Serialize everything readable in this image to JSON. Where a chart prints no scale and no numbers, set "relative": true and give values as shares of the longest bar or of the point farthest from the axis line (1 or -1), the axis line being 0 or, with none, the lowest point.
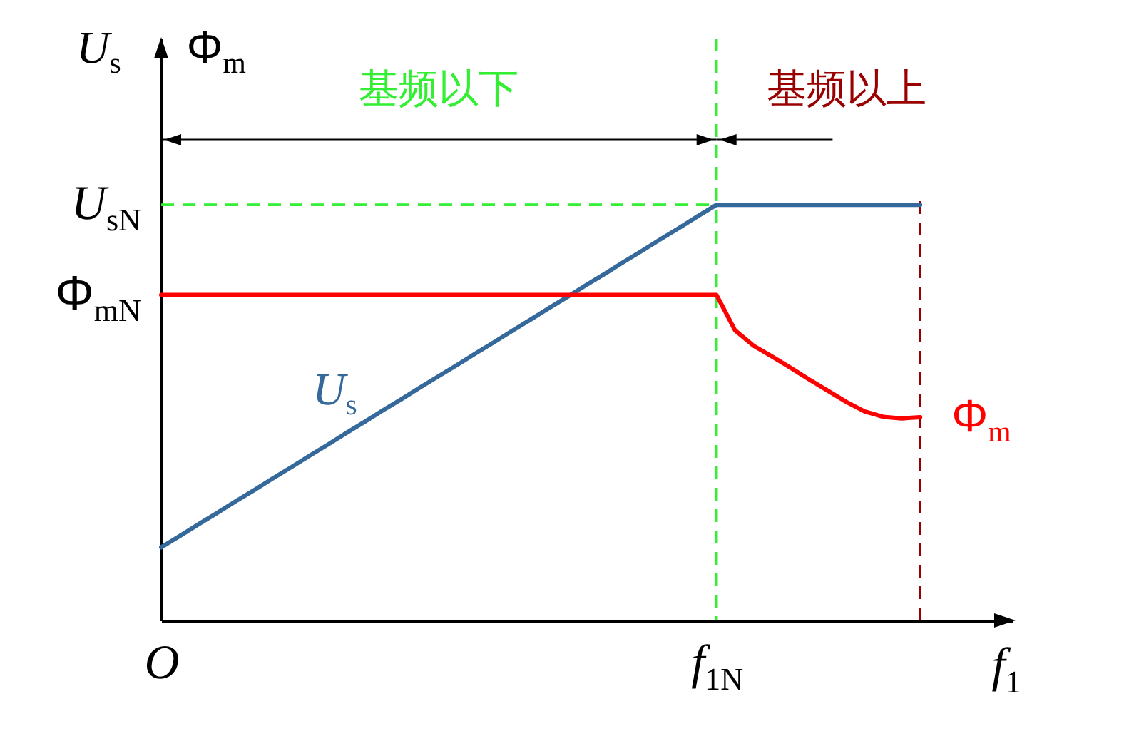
{
  "chart_data": {
    "type": "line",
    "relative": true,
    "ylabel": "U$_{s}$ Φ$_{m}$",
    "xlabel": "f$_{1}$",
    "categories": [
      "O",
      null,
      null,
      null,
      null,
      null,
      null,
      null,
      null,
      null,
      null,
      null,
      null,
      null,
      null,
      null,
      null,
      null,
      null,
      null,
      null,
      null,
      null,
      null,
      null,
      null,
      null,
      null,
      null,
      null,
      "f$_{1N}$",
      null,
      null,
      null,
      null,
      null,
      null,
      null,
      null,
      null,
      null,
      null
    ],
    "series": [
      {
        "name": "U$_{s}$",
        "color": "#36699b",
        "values": [
          0.176,
          0.203,
          0.231,
          0.258,
          0.286,
          0.313,
          0.341,
          0.368,
          0.396,
          0.423,
          0.451,
          0.478,
          0.506,
          0.533,
          0.561,
          0.588,
          0.615,
          0.643,
          0.67,
          0.698,
          0.725,
          0.753,
          0.78,
          0.808,
          0.835,
          0.863,
          0.89,
          0.918,
          0.945,
          0.973,
          1,
          1,
          1,
          1,
          1,
          1,
          1,
          1,
          1,
          1,
          1,
          1
        ]
      },
      {
        "name": "Φ$_{m}$",
        "color": "#ff0000",
        "values": [
          0.783,
          0.783,
          0.783,
          0.783,
          0.783,
          0.783,
          0.783,
          0.783,
          0.783,
          0.783,
          0.783,
          0.783,
          0.783,
          0.783,
          0.783,
          0.783,
          0.783,
          0.783,
          0.783,
          0.783,
          0.783,
          0.783,
          0.783,
          0.783,
          0.783,
          0.783,
          0.783,
          0.783,
          0.783,
          0.783,
          0.783,
          0.698,
          0.661,
          0.635,
          0.608,
          0.58,
          0.553,
          0.526,
          0.503,
          0.49,
          0.486,
          0.489
        ]
      }
    ],
    "ref_lines": [
      {
        "axis": "x",
        "value": "f$_{1N}$",
        "color": "#33ee33",
        "line_style": "dashed"
      },
      {
        "axis": "y",
        "value": 1,
        "label": "U$_{sN}$",
        "color": "#33ee33",
        "line_style": "dashed"
      }
    ],
    "annotations": [
      "基频以下",
      "基频以上",
      "Φ$_{mN}$"
    ]
  }
}
